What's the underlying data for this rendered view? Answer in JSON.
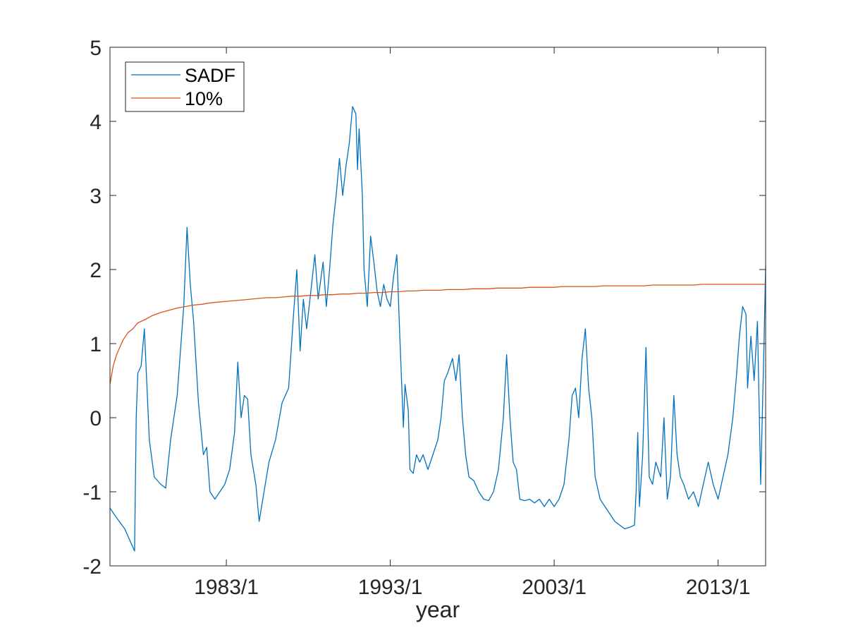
{
  "chart_data": {
    "type": "line",
    "title": "",
    "xlabel": "year",
    "ylabel": "",
    "ylim": [
      -2,
      5
    ],
    "xlim": [
      1975.9,
      2015.9
    ],
    "y_ticks": [
      -2,
      -1,
      0,
      1,
      2,
      3,
      4,
      5
    ],
    "y_tick_labels": [
      "-2",
      "-1",
      "0",
      "1",
      "2",
      "3",
      "4",
      "5"
    ],
    "x_ticks": [
      1983.0,
      1993.0,
      2003.0,
      2013.0
    ],
    "x_tick_labels": [
      "1983/1",
      "1993/1",
      "2003/1",
      "2013/1"
    ],
    "grid": false,
    "legend": {
      "location": "top-left",
      "entries": [
        "SADF",
        "10%"
      ]
    },
    "series": [
      {
        "name": "SADF",
        "color": "#0072BD",
        "points": [
          [
            1975.9,
            -1.22
          ],
          [
            1976.3,
            -1.35
          ],
          [
            1976.8,
            -1.5
          ],
          [
            1977.1,
            -1.65
          ],
          [
            1977.4,
            -1.8
          ],
          [
            1977.5,
            0.0
          ],
          [
            1977.6,
            0.6
          ],
          [
            1977.8,
            0.7
          ],
          [
            1978.0,
            1.2
          ],
          [
            1978.3,
            -0.3
          ],
          [
            1978.6,
            -0.8
          ],
          [
            1979.0,
            -0.9
          ],
          [
            1979.3,
            -0.95
          ],
          [
            1979.6,
            -0.3
          ],
          [
            1980.0,
            0.3
          ],
          [
            1980.4,
            1.5
          ],
          [
            1980.6,
            2.57
          ],
          [
            1980.8,
            1.8
          ],
          [
            1981.0,
            1.3
          ],
          [
            1981.3,
            0.2
          ],
          [
            1981.6,
            -0.5
          ],
          [
            1981.8,
            -0.4
          ],
          [
            1982.0,
            -1.0
          ],
          [
            1982.3,
            -1.1
          ],
          [
            1982.6,
            -1.0
          ],
          [
            1982.9,
            -0.9
          ],
          [
            1983.2,
            -0.7
          ],
          [
            1983.5,
            -0.2
          ],
          [
            1983.7,
            0.75
          ],
          [
            1983.9,
            0.0
          ],
          [
            1984.1,
            0.3
          ],
          [
            1984.3,
            0.25
          ],
          [
            1984.5,
            -0.5
          ],
          [
            1984.8,
            -0.9
          ],
          [
            1985.0,
            -1.4
          ],
          [
            1985.3,
            -1.0
          ],
          [
            1985.6,
            -0.6
          ],
          [
            1986.0,
            -0.3
          ],
          [
            1986.4,
            0.2
          ],
          [
            1986.8,
            0.4
          ],
          [
            1987.1,
            1.4
          ],
          [
            1987.3,
            2.0
          ],
          [
            1987.5,
            0.9
          ],
          [
            1987.7,
            1.6
          ],
          [
            1987.9,
            1.2
          ],
          [
            1988.2,
            1.8
          ],
          [
            1988.4,
            2.2
          ],
          [
            1988.6,
            1.6
          ],
          [
            1988.9,
            2.1
          ],
          [
            1989.1,
            1.5
          ],
          [
            1989.3,
            2.0
          ],
          [
            1989.5,
            2.6
          ],
          [
            1989.7,
            3.0
          ],
          [
            1989.9,
            3.5
          ],
          [
            1990.1,
            3.0
          ],
          [
            1990.3,
            3.4
          ],
          [
            1990.5,
            3.7
          ],
          [
            1990.7,
            4.2
          ],
          [
            1990.9,
            4.1
          ],
          [
            1991.0,
            3.35
          ],
          [
            1991.1,
            3.9
          ],
          [
            1991.3,
            3.0
          ],
          [
            1991.4,
            2.0
          ],
          [
            1991.6,
            1.5
          ],
          [
            1991.8,
            2.45
          ],
          [
            1992.0,
            2.1
          ],
          [
            1992.2,
            1.7
          ],
          [
            1992.4,
            1.5
          ],
          [
            1992.6,
            1.8
          ],
          [
            1992.8,
            1.6
          ],
          [
            1993.0,
            1.5
          ],
          [
            1993.2,
            1.9
          ],
          [
            1993.4,
            2.2
          ],
          [
            1993.6,
            1.0
          ],
          [
            1993.8,
            -0.13
          ],
          [
            1993.9,
            0.45
          ],
          [
            1994.1,
            0.1
          ],
          [
            1994.2,
            -0.7
          ],
          [
            1994.4,
            -0.75
          ],
          [
            1994.6,
            -0.5
          ],
          [
            1994.8,
            -0.6
          ],
          [
            1995.0,
            -0.5
          ],
          [
            1995.3,
            -0.7
          ],
          [
            1995.6,
            -0.5
          ],
          [
            1995.9,
            -0.3
          ],
          [
            1996.1,
            0.0
          ],
          [
            1996.3,
            0.5
          ],
          [
            1996.5,
            0.6
          ],
          [
            1996.8,
            0.8
          ],
          [
            1997.0,
            0.5
          ],
          [
            1997.2,
            0.85
          ],
          [
            1997.4,
            0.0
          ],
          [
            1997.6,
            -0.5
          ],
          [
            1997.8,
            -0.8
          ],
          [
            1998.1,
            -0.85
          ],
          [
            1998.4,
            -1.0
          ],
          [
            1998.7,
            -1.1
          ],
          [
            1999.0,
            -1.12
          ],
          [
            1999.3,
            -1.0
          ],
          [
            1999.6,
            -0.7
          ],
          [
            1999.9,
            0.0
          ],
          [
            2000.1,
            0.85
          ],
          [
            2000.3,
            0.0
          ],
          [
            2000.5,
            -0.6
          ],
          [
            2000.7,
            -0.7
          ],
          [
            2000.9,
            -1.1
          ],
          [
            2001.2,
            -1.12
          ],
          [
            2001.5,
            -1.1
          ],
          [
            2001.8,
            -1.15
          ],
          [
            2002.1,
            -1.1
          ],
          [
            2002.4,
            -1.2
          ],
          [
            2002.7,
            -1.1
          ],
          [
            2003.0,
            -1.2
          ],
          [
            2003.3,
            -1.1
          ],
          [
            2003.6,
            -0.9
          ],
          [
            2003.9,
            -0.3
          ],
          [
            2004.1,
            0.3
          ],
          [
            2004.3,
            0.4
          ],
          [
            2004.5,
            0.0
          ],
          [
            2004.7,
            0.8
          ],
          [
            2004.9,
            1.2
          ],
          [
            2005.1,
            0.4
          ],
          [
            2005.3,
            0.0
          ],
          [
            2005.5,
            -0.8
          ],
          [
            2005.8,
            -1.1
          ],
          [
            2006.1,
            -1.2
          ],
          [
            2006.4,
            -1.3
          ],
          [
            2006.7,
            -1.4
          ],
          [
            2007.0,
            -1.45
          ],
          [
            2007.3,
            -1.5
          ],
          [
            2007.6,
            -1.48
          ],
          [
            2007.9,
            -1.45
          ],
          [
            2008.0,
            -1.0
          ],
          [
            2008.1,
            -0.2
          ],
          [
            2008.2,
            -1.2
          ],
          [
            2008.4,
            -0.5
          ],
          [
            2008.6,
            0.95
          ],
          [
            2008.8,
            -0.8
          ],
          [
            2009.0,
            -0.9
          ],
          [
            2009.2,
            -0.6
          ],
          [
            2009.5,
            -0.8
          ],
          [
            2009.7,
            0.0
          ],
          [
            2009.9,
            -1.1
          ],
          [
            2010.1,
            -0.8
          ],
          [
            2010.3,
            0.3
          ],
          [
            2010.5,
            -0.5
          ],
          [
            2010.7,
            -0.8
          ],
          [
            2010.9,
            -0.9
          ],
          [
            2011.2,
            -1.1
          ],
          [
            2011.5,
            -1.0
          ],
          [
            2011.8,
            -1.2
          ],
          [
            2012.1,
            -0.9
          ],
          [
            2012.4,
            -0.6
          ],
          [
            2012.7,
            -0.9
          ],
          [
            2013.0,
            -1.1
          ],
          [
            2013.3,
            -0.8
          ],
          [
            2013.6,
            -0.5
          ],
          [
            2013.9,
            0.0
          ],
          [
            2014.1,
            0.5
          ],
          [
            2014.3,
            1.1
          ],
          [
            2014.5,
            1.5
          ],
          [
            2014.7,
            1.4
          ],
          [
            2014.8,
            0.4
          ],
          [
            2015.0,
            1.1
          ],
          [
            2015.2,
            0.5
          ],
          [
            2015.4,
            1.3
          ],
          [
            2015.6,
            -0.9
          ],
          [
            2015.8,
            1.0
          ],
          [
            2015.9,
            2.05
          ]
        ]
      },
      {
        "name": "10%",
        "color": "#D95319",
        "points": [
          [
            1975.9,
            0.45
          ],
          [
            1976.1,
            0.7
          ],
          [
            1976.3,
            0.85
          ],
          [
            1976.5,
            0.95
          ],
          [
            1976.7,
            1.05
          ],
          [
            1977.0,
            1.15
          ],
          [
            1977.3,
            1.2
          ],
          [
            1977.6,
            1.28
          ],
          [
            1978.0,
            1.32
          ],
          [
            1978.5,
            1.38
          ],
          [
            1979.0,
            1.42
          ],
          [
            1979.5,
            1.45
          ],
          [
            1980.0,
            1.48
          ],
          [
            1980.5,
            1.5
          ],
          [
            1981.0,
            1.52
          ],
          [
            1981.5,
            1.53
          ],
          [
            1982.0,
            1.55
          ],
          [
            1982.5,
            1.56
          ],
          [
            1983.0,
            1.57
          ],
          [
            1983.5,
            1.58
          ],
          [
            1984.0,
            1.59
          ],
          [
            1984.5,
            1.6
          ],
          [
            1985.0,
            1.61
          ],
          [
            1985.5,
            1.62
          ],
          [
            1986.0,
            1.62
          ],
          [
            1986.5,
            1.63
          ],
          [
            1987.0,
            1.64
          ],
          [
            1987.5,
            1.64
          ],
          [
            1988.0,
            1.65
          ],
          [
            1988.5,
            1.65
          ],
          [
            1989.0,
            1.66
          ],
          [
            1989.5,
            1.66
          ],
          [
            1990.0,
            1.67
          ],
          [
            1990.5,
            1.67
          ],
          [
            1991.0,
            1.68
          ],
          [
            1991.5,
            1.68
          ],
          [
            1992.0,
            1.69
          ],
          [
            1992.5,
            1.69
          ],
          [
            1993.0,
            1.7
          ],
          [
            1993.5,
            1.7
          ],
          [
            1994.0,
            1.71
          ],
          [
            1994.5,
            1.71
          ],
          [
            1995.0,
            1.72
          ],
          [
            1995.5,
            1.72
          ],
          [
            1996.0,
            1.72
          ],
          [
            1996.5,
            1.73
          ],
          [
            1997.0,
            1.73
          ],
          [
            1997.5,
            1.73
          ],
          [
            1998.0,
            1.74
          ],
          [
            1998.5,
            1.74
          ],
          [
            1999.0,
            1.74
          ],
          [
            1999.5,
            1.75
          ],
          [
            2000.0,
            1.75
          ],
          [
            2000.5,
            1.75
          ],
          [
            2001.0,
            1.75
          ],
          [
            2001.5,
            1.76
          ],
          [
            2002.0,
            1.76
          ],
          [
            2002.5,
            1.76
          ],
          [
            2003.0,
            1.76
          ],
          [
            2003.5,
            1.77
          ],
          [
            2004.0,
            1.77
          ],
          [
            2004.5,
            1.77
          ],
          [
            2005.0,
            1.77
          ],
          [
            2005.5,
            1.77
          ],
          [
            2006.0,
            1.78
          ],
          [
            2006.5,
            1.78
          ],
          [
            2007.0,
            1.78
          ],
          [
            2007.5,
            1.78
          ],
          [
            2008.0,
            1.78
          ],
          [
            2008.5,
            1.78
          ],
          [
            2009.0,
            1.79
          ],
          [
            2009.5,
            1.79
          ],
          [
            2010.0,
            1.79
          ],
          [
            2010.5,
            1.79
          ],
          [
            2011.0,
            1.79
          ],
          [
            2011.5,
            1.79
          ],
          [
            2012.0,
            1.8
          ],
          [
            2012.5,
            1.8
          ],
          [
            2013.0,
            1.8
          ],
          [
            2013.5,
            1.8
          ],
          [
            2014.0,
            1.8
          ],
          [
            2014.5,
            1.8
          ],
          [
            2015.0,
            1.8
          ],
          [
            2015.5,
            1.8
          ],
          [
            2015.9,
            1.8
          ]
        ]
      }
    ]
  }
}
